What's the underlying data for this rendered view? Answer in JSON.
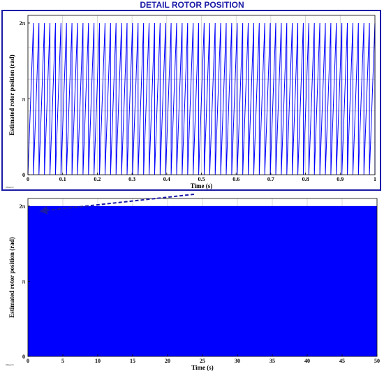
{
  "banner": {
    "title": "DETAIL ROTOR POSITION",
    "frame_color": "#1a1aa8"
  },
  "colors": {
    "signal": "#0000ff",
    "grid": "#bfbfbf",
    "axes": "#000000"
  },
  "chart_data": [
    {
      "type": "line",
      "panel": "detail",
      "title": "",
      "xlabel": "Time (s)",
      "ylabel": "Estimated rotor position (rad)",
      "xlim": [
        0,
        1
      ],
      "ylim": [
        0,
        6.6
      ],
      "x_ticks": [
        0,
        0.1,
        0.2,
        0.3,
        0.4,
        0.5,
        0.6,
        0.7,
        0.8,
        0.9,
        1
      ],
      "x_tick_labels": [
        "0",
        "0.1",
        "0.2",
        "0.3",
        "0.4",
        "0.5",
        "0.6",
        "0.7",
        "0.8",
        "0.9",
        "1"
      ],
      "y_ticks": [
        0,
        3.1416,
        6.2832
      ],
      "y_tick_labels": [
        "0",
        "π",
        "2π"
      ],
      "grid": true,
      "waveform": "sawtooth",
      "min": 0,
      "max": 6.2832,
      "cycles": 63,
      "offset_label": "Offset=0"
    },
    {
      "type": "line",
      "panel": "full",
      "title": "",
      "xlabel": "Time (s)",
      "ylabel": "Estimated rotor position (rad)",
      "xlim": [
        0,
        50
      ],
      "ylim": [
        0,
        6.6
      ],
      "x_ticks": [
        0,
        5,
        10,
        15,
        20,
        25,
        30,
        35,
        40,
        45,
        50
      ],
      "x_tick_labels": [
        "0",
        "5",
        "10",
        "15",
        "20",
        "25",
        "30",
        "35",
        "40",
        "45",
        "50"
      ],
      "y_ticks": [
        0,
        3.1416,
        6.2832
      ],
      "y_tick_labels": [
        "0",
        "π",
        "2π"
      ],
      "grid": true,
      "waveform": "sawtooth",
      "min": 0,
      "max": 6.2832,
      "appearance": "dense fill",
      "offset_label": "Offset=0"
    }
  ]
}
